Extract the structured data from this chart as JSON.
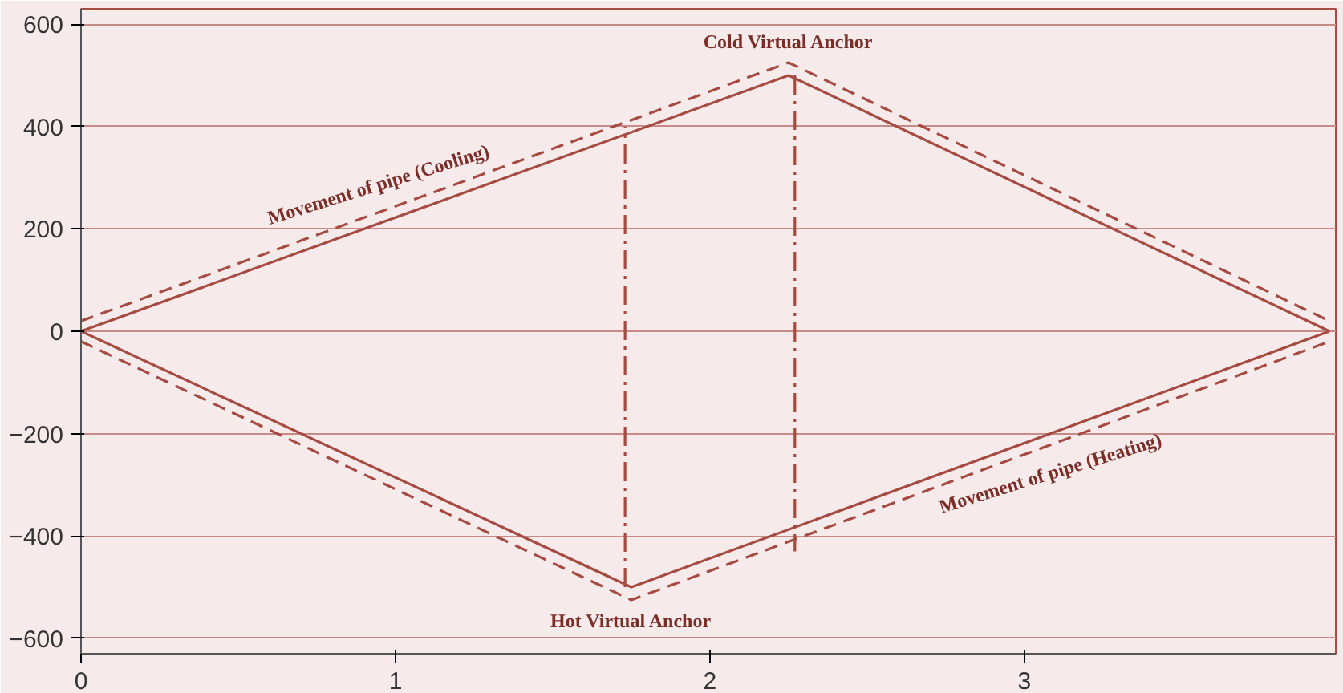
{
  "chart_data": {
    "type": "line",
    "xlim": [
      0,
      3.99
    ],
    "ylim": [
      -630,
      630
    ],
    "xticks": [
      0,
      1,
      2,
      3
    ],
    "yticks": [
      -600,
      -400,
      -200,
      0,
      200,
      400,
      600
    ],
    "grid": "y",
    "series": [
      {
        "color": "#a64b42",
        "x": [
          0,
          2.25,
          3.97
        ],
        "values": [
          0,
          500,
          0
        ],
        "line_style": "solid"
      },
      {
        "color": "#a64b42",
        "x": [
          0,
          1.75,
          3.97
        ],
        "values": [
          0,
          -500,
          0
        ],
        "line_style": "solid"
      },
      {
        "color": "#a64b42",
        "x": [
          0,
          2.25,
          3.97
        ],
        "values": [
          20,
          525,
          20
        ],
        "line_style": "dashed"
      },
      {
        "color": "#a64b42",
        "x": [
          0,
          1.75,
          3.97
        ],
        "values": [
          -20,
          -525,
          -20
        ],
        "line_style": "dashed"
      },
      {
        "color": "#a64b42",
        "x": [
          1.73,
          1.73
        ],
        "values": [
          -500,
          400
        ],
        "line_style": "dashdot"
      },
      {
        "color": "#a64b42",
        "x": [
          2.27,
          2.27
        ],
        "values": [
          500,
          -430
        ],
        "line_style": "dashdot"
      }
    ],
    "annotations": [
      "Cold Virtual Anchor",
      "Hot Virtual Anchor",
      "Movement of pipe (Cooling)",
      "Movement of pipe (Heating)"
    ]
  }
}
